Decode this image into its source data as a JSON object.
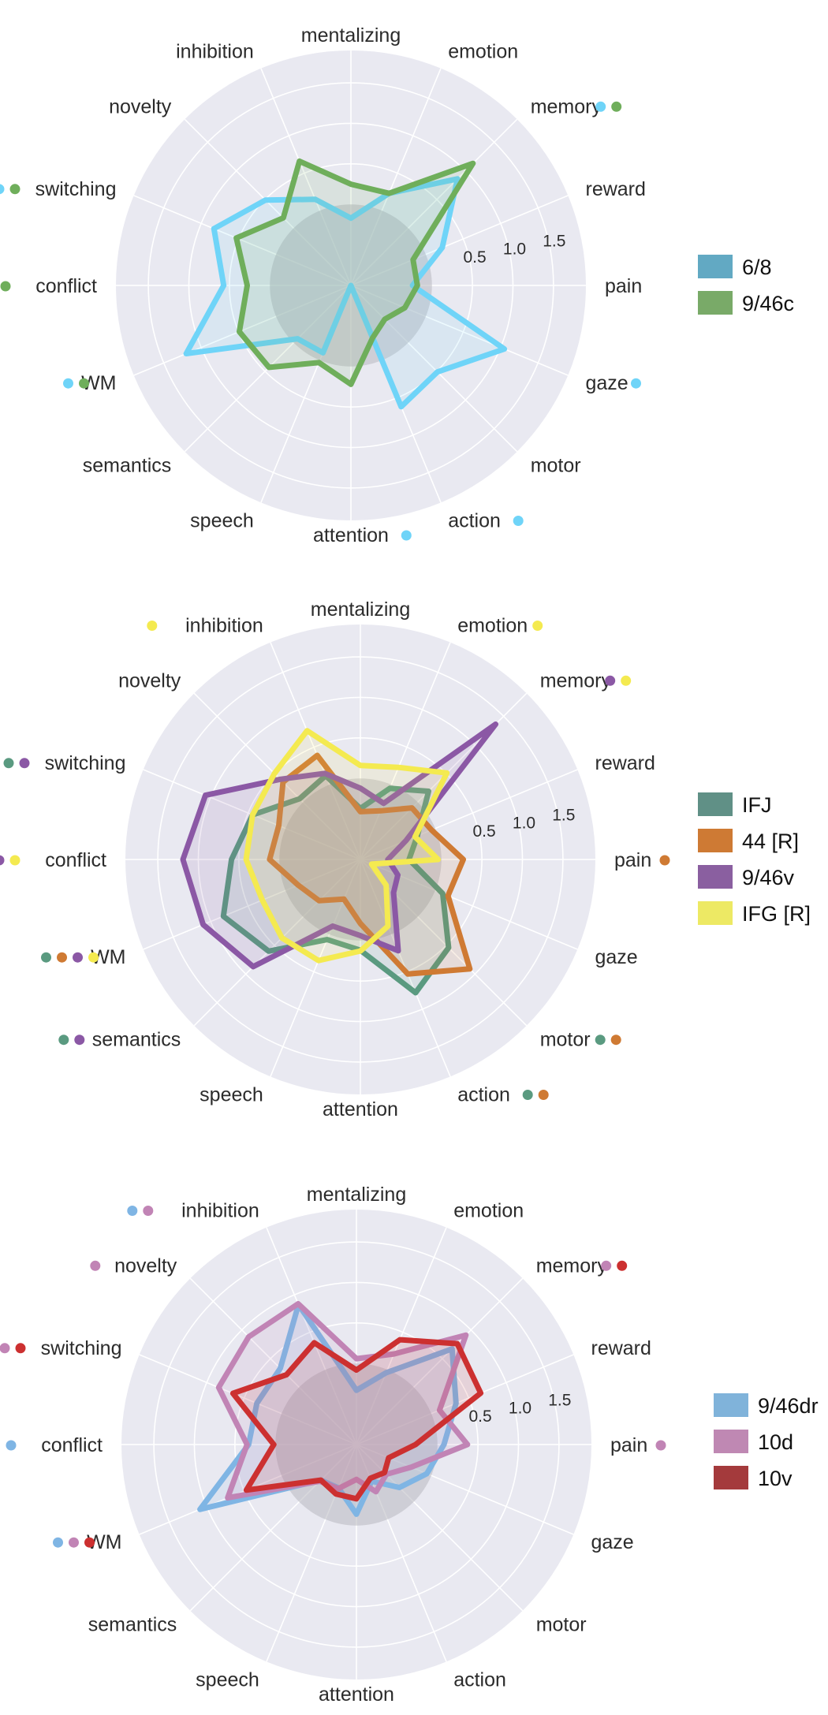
{
  "chart_data": [
    {
      "type": "radar",
      "categories": [
        "mentalizing",
        "emotion",
        "memory",
        "reward",
        "pain",
        "gaze",
        "motor",
        "action",
        "attention",
        "speech",
        "semantics",
        "WM",
        "conflict",
        "switching",
        "novelty",
        "inhibition"
      ],
      "rticks": [
        "0.5",
        "1.0",
        "1.5"
      ],
      "rlim": [
        -1.0,
        1.9
      ],
      "grid": true,
      "legend_position": "right",
      "series": [
        {
          "name": "6/8",
          "color": "#62a9c3",
          "line_color": "#6fd4f8",
          "values": [
            -0.17,
            0.23,
            0.86,
            0.22,
            -0.24,
            1.05,
            0.51,
            0.62,
            -1.0,
            -0.1,
            -0.07,
            1.2,
            0.57,
            0.83,
            0.49,
            0.15
          ],
          "markers": [
            "switching",
            "conflict",
            "WM",
            "memory",
            "gaze",
            "action",
            "attention"
          ]
        },
        {
          "name": "9/46c",
          "color": "#79aa68",
          "line_color": "#6fae5b",
          "values": [
            0.25,
            0.23,
            1.13,
            -0.17,
            -0.18,
            -0.28,
            -0.41,
            -0.3,
            0.22,
            0.03,
            0.43,
            0.49,
            0.28,
            0.53,
            0.18,
            0.66
          ],
          "markers": [
            "switching",
            "conflict",
            "WM",
            "memory"
          ]
        }
      ]
    },
    {
      "type": "radar",
      "categories": [
        "mentalizing",
        "emotion",
        "memory",
        "reward",
        "pain",
        "gaze",
        "motor",
        "action",
        "attention",
        "speech",
        "semantics",
        "WM",
        "conflict",
        "switching",
        "novelty",
        "inhibition"
      ],
      "rticks": [
        "0.5",
        "1.0",
        "1.5"
      ],
      "rlim": [
        -1.0,
        1.9
      ],
      "grid": true,
      "legend_position": "right",
      "series": [
        {
          "name": "IFJ",
          "color": "#609086",
          "line_color": "#5a9a80",
          "values": [
            -0.37,
            -0.05,
            0.19,
            -0.24,
            -0.4,
            0.1,
            0.54,
            0.78,
            0.12,
            0.07,
            0.6,
            0.83,
            0.59,
            0.44,
            0.06,
            0.12
          ],
          "markers": [
            "switching",
            "conflict",
            "WM",
            "semantics",
            "motor",
            "action"
          ]
        },
        {
          "name": "44 [R]",
          "color": "#ce7a34",
          "line_color": "#cf7a33",
          "values": [
            -0.41,
            -0.35,
            -0.1,
            -0.05,
            0.27,
            0.17,
            0.91,
            0.53,
            -0.21,
            -0.47,
            -0.28,
            -0.17,
            0.12,
            0.09,
            0.35,
            0.39
          ],
          "markers": [
            "conflict",
            "WM",
            "pain",
            "motor",
            "action"
          ]
        },
        {
          "name": "9/46v",
          "color": "#8a5fa0",
          "line_color": "#8b58a5",
          "values": [
            -0.12,
            -0.25,
            1.36,
            -0.39,
            -0.66,
            -0.5,
            -0.42,
            0.22,
            -0.06,
            -0.11,
            0.87,
            1.1,
            1.19,
            1.07,
            0.4,
            0.15
          ],
          "markers": [
            "memory",
            "switching",
            "conflict",
            "WM",
            "semantics"
          ]
        },
        {
          "name": "IFG [R]",
          "color": "#ede964",
          "line_color": "#f4ea50",
          "values": [
            0.16,
            0.23,
            0.51,
            -0.27,
            -0.04,
            -0.85,
            -0.55,
            -0.11,
            0.13,
            0.35,
            0.37,
            0.31,
            0.41,
            0.44,
            0.5,
            0.72
          ],
          "markers": [
            "inhibition",
            "emotion",
            "memory",
            "conflict",
            "WM"
          ]
        }
      ]
    },
    {
      "type": "radar",
      "categories": [
        "mentalizing",
        "emotion",
        "memory",
        "reward",
        "pain",
        "gaze",
        "motor",
        "action",
        "attention",
        "speech",
        "semantics",
        "WM",
        "conflict",
        "switching",
        "novelty",
        "inhibition"
      ],
      "rticks": [
        "0.5",
        "1.0",
        "1.5"
      ],
      "rlim": [
        -1.0,
        1.9
      ],
      "grid": true,
      "legend_position": "right",
      "series": [
        {
          "name": "9/46dr",
          "color": "#80b3da",
          "line_color": "#7fb5e4",
          "values": [
            -0.33,
            -0.04,
            0.67,
            0.33,
            0.08,
            -0.06,
            -0.25,
            -0.51,
            -0.14,
            -0.42,
            -0.38,
            1.09,
            0.33,
            0.33,
            0.33,
            0.87
          ],
          "markers": [
            "inhibition",
            "switching",
            "conflict",
            "WM"
          ]
        },
        {
          "name": "10d",
          "color": "#bf88b3",
          "line_color": "#c184b5",
          "values": [
            0.06,
            0.21,
            0.91,
            0.11,
            0.37,
            -0.27,
            -0.48,
            -0.37,
            -0.57,
            -0.41,
            -0.36,
            0.72,
            0.35,
            0.84,
            0.88,
            0.88
          ],
          "markers": [
            "inhibition",
            "novelty",
            "switching",
            "WM",
            "memory",
            "pain"
          ]
        },
        {
          "name": "10v",
          "color": "#a43a3c",
          "line_color": "#cc3030",
          "values": [
            -0.08,
            0.4,
            0.76,
            0.66,
            -0.27,
            -0.57,
            -0.51,
            -0.55,
            -0.33,
            -0.34,
            -0.38,
            0.47,
            0.02,
            0.65,
            0.22,
            0.36
          ],
          "markers": [
            "switching",
            "WM",
            "memory"
          ]
        }
      ]
    }
  ]
}
